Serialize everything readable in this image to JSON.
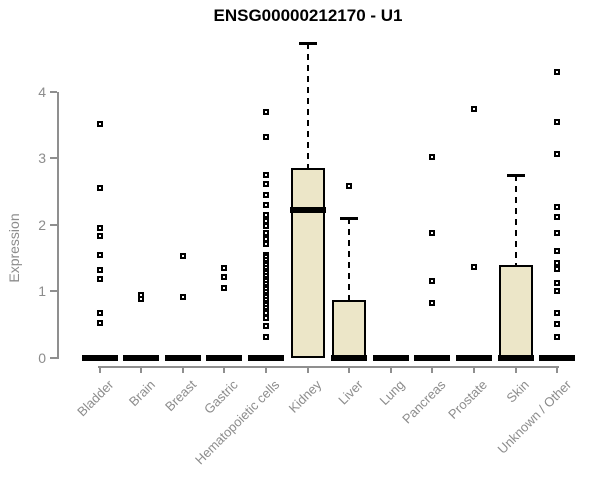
{
  "title": "ENSG00000212170 - U1",
  "colors": {
    "box_fill": "#ece6c8",
    "box_border": "#000000",
    "axis": "#8f8f8f",
    "tick_label": "#8c8c8c",
    "title": "#000000",
    "background": "#ffffff"
  },
  "chart_data": {
    "type": "boxplot",
    "title": "ENSG00000212170 - U1",
    "xlabel": "",
    "ylabel": "Expression",
    "ylim": [
      0,
      4.8
    ],
    "yticks": [
      0,
      1,
      2,
      3,
      4
    ],
    "ytick_labels": [
      "0",
      "1",
      "2",
      "3",
      "4"
    ],
    "grid": false,
    "legend": "none",
    "box_fill": "#ece6c8",
    "categories": [
      "Bladder",
      "Brain",
      "Breast",
      "Gastric",
      "Hematopoietic cells",
      "Kidney",
      "Liver",
      "Lung",
      "Pancreas",
      "Prostate",
      "Skin",
      "Unknown / Other"
    ],
    "series": [
      {
        "name": "Bladder",
        "q1": 0,
        "median": 0,
        "q3": 0,
        "whisker_low": 0,
        "whisker_high": 0,
        "outliers": [
          3.52,
          2.55,
          1.95,
          1.83,
          1.55,
          1.32,
          1.18,
          0.68,
          0.53
        ]
      },
      {
        "name": "Brain",
        "q1": 0,
        "median": 0,
        "q3": 0,
        "whisker_low": 0,
        "whisker_high": 0,
        "outliers": [
          0.95,
          0.88
        ]
      },
      {
        "name": "Breast",
        "q1": 0,
        "median": 0,
        "q3": 0,
        "whisker_low": 0,
        "whisker_high": 0,
        "outliers": [
          1.53,
          0.92
        ]
      },
      {
        "name": "Gastric",
        "q1": 0,
        "median": 0,
        "q3": 0,
        "whisker_low": 0,
        "whisker_high": 0,
        "outliers": [
          1.35,
          1.22,
          1.05
        ]
      },
      {
        "name": "Hematopoietic cells",
        "q1": 0,
        "median": 0,
        "q3": 0,
        "whisker_low": 0,
        "whisker_high": 0,
        "outliers": [
          3.7,
          3.32,
          2.75,
          2.61,
          2.45,
          2.3,
          2.14,
          2.06,
          1.98,
          1.87,
          1.79,
          1.71,
          1.55,
          1.51,
          1.47,
          1.43,
          1.39,
          1.35,
          1.31,
          1.27,
          1.23,
          1.19,
          1.15,
          1.11,
          1.07,
          1.03,
          0.99,
          0.95,
          0.91,
          0.87,
          0.83,
          0.79,
          0.75,
          0.71,
          0.67,
          0.6,
          0.48,
          0.32
        ]
      },
      {
        "name": "Kidney",
        "q1": 0,
        "median": 2.22,
        "q3": 2.85,
        "whisker_low": 0,
        "whisker_high": 4.73,
        "outliers": []
      },
      {
        "name": "Liver",
        "q1": 0,
        "median": 0,
        "q3": 0.87,
        "whisker_low": 0,
        "whisker_high": 2.1,
        "outliers": [
          2.58
        ]
      },
      {
        "name": "Lung",
        "q1": 0,
        "median": 0,
        "q3": 0,
        "whisker_low": 0,
        "whisker_high": 0,
        "outliers": []
      },
      {
        "name": "Pancreas",
        "q1": 0,
        "median": 0,
        "q3": 0,
        "whisker_low": 0,
        "whisker_high": 0,
        "outliers": [
          3.02,
          1.88,
          1.16,
          0.82
        ]
      },
      {
        "name": "Prostate",
        "q1": 0,
        "median": 0,
        "q3": 0,
        "whisker_low": 0,
        "whisker_high": 0,
        "outliers": [
          3.74,
          1.36
        ]
      },
      {
        "name": "Skin",
        "q1": 0,
        "median": 0,
        "q3": 1.4,
        "whisker_low": 0,
        "whisker_high": 2.75,
        "outliers": []
      },
      {
        "name": "Unknown / Other",
        "q1": 0,
        "median": 0,
        "q3": 0,
        "whisker_low": 0,
        "whisker_high": 0,
        "outliers": [
          4.3,
          3.55,
          3.06,
          2.27,
          2.11,
          1.87,
          1.61,
          1.43,
          1.33,
          1.12,
          1.0,
          0.67,
          0.51,
          0.32
        ]
      }
    ]
  }
}
